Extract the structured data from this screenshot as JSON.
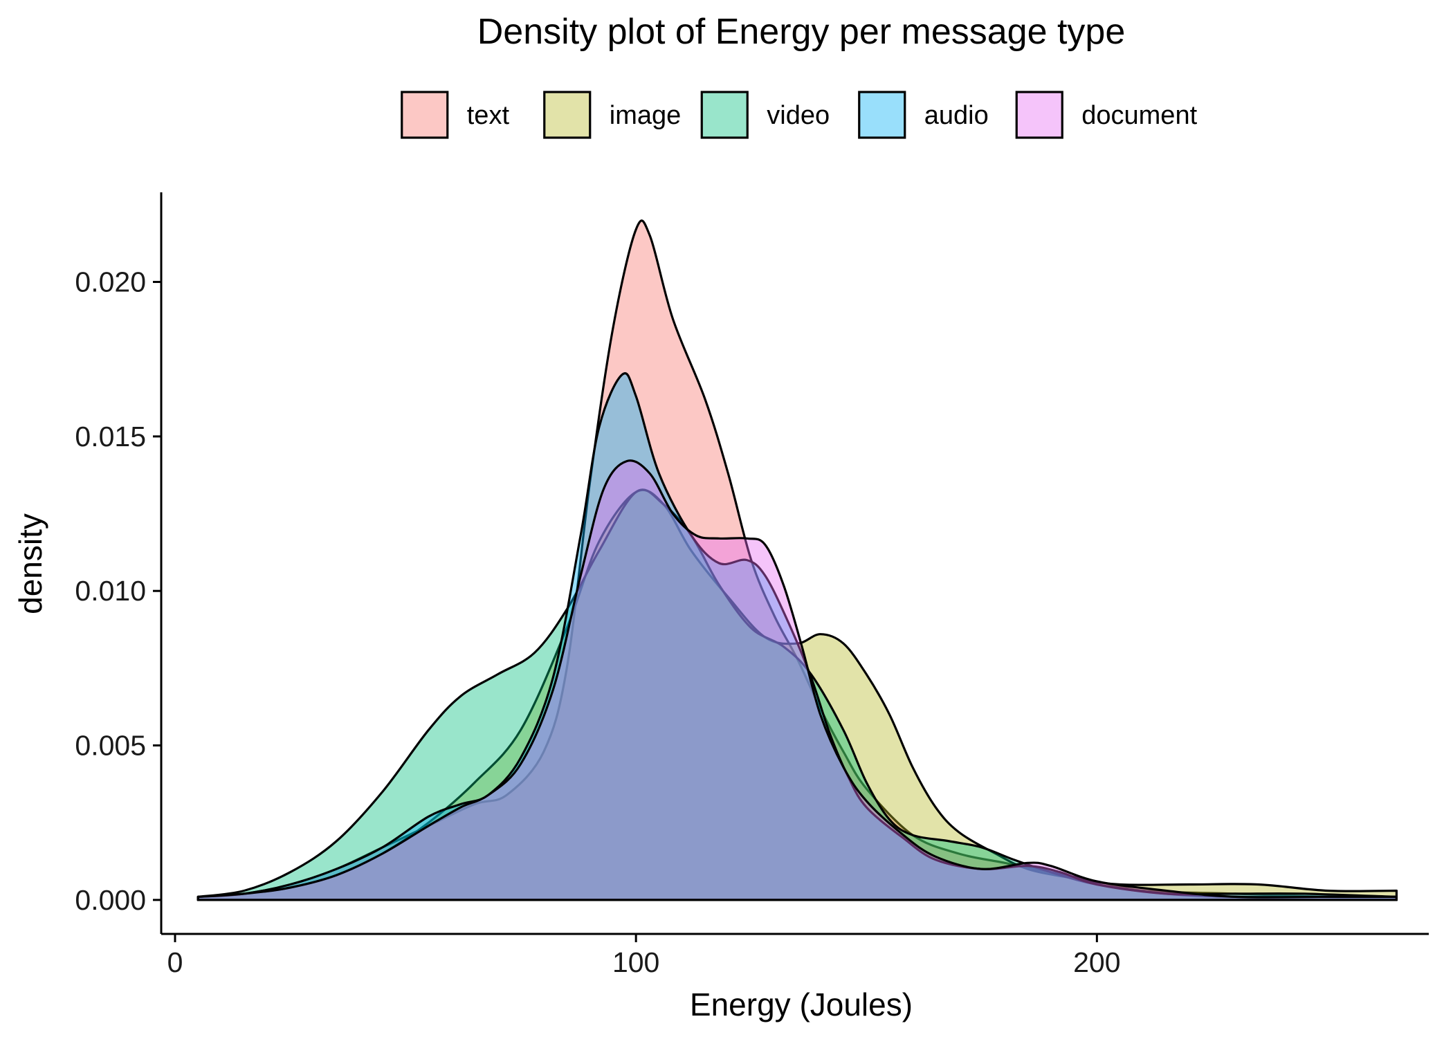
{
  "chart_data": {
    "type": "area",
    "title": "Density plot of Energy per message type",
    "xlabel": "Energy (Joules)",
    "ylabel": "density",
    "xlim": [
      -3,
      272
    ],
    "ylim": [
      -0.0011,
      0.0229
    ],
    "x_ticks": [
      0,
      100,
      200
    ],
    "x_tick_labels": [
      "0",
      "100",
      "200"
    ],
    "y_ticks": [
      0,
      0.005,
      0.01,
      0.015,
      0.02
    ],
    "y_tick_labels": [
      "0.000",
      "0.005",
      "0.010",
      "0.015",
      "0.020"
    ],
    "legend_position": "top",
    "grid": false,
    "fill_opacity": 0.4,
    "series": [
      {
        "name": "text",
        "color": "#F8766D",
        "points": [
          [
            5,
            0.0001
          ],
          [
            15,
            0.0002
          ],
          [
            25,
            0.0005
          ],
          [
            35,
            0.001
          ],
          [
            45,
            0.0017
          ],
          [
            55,
            0.0024
          ],
          [
            65,
            0.0031
          ],
          [
            72,
            0.0034
          ],
          [
            80,
            0.0048
          ],
          [
            85,
            0.0075
          ],
          [
            90,
            0.0135
          ],
          [
            95,
            0.0185
          ],
          [
            100,
            0.0217
          ],
          [
            103,
            0.0215
          ],
          [
            108,
            0.0188
          ],
          [
            115,
            0.0162
          ],
          [
            120,
            0.0138
          ],
          [
            125,
            0.011
          ],
          [
            130,
            0.0092
          ],
          [
            135,
            0.0078
          ],
          [
            140,
            0.0062
          ],
          [
            145,
            0.0048
          ],
          [
            150,
            0.0036
          ],
          [
            160,
            0.0021
          ],
          [
            170,
            0.0015
          ],
          [
            180,
            0.0012
          ],
          [
            190,
            0.0009
          ],
          [
            200,
            0.0006
          ],
          [
            210,
            0.0003
          ],
          [
            230,
            0.0002
          ],
          [
            250,
            0.0001
          ],
          [
            265,
            0.0001
          ]
        ]
      },
      {
        "name": "image",
        "color": "#B6B928",
        "points": [
          [
            5,
            0.0001
          ],
          [
            15,
            0.0002
          ],
          [
            25,
            0.0004
          ],
          [
            35,
            0.0008
          ],
          [
            45,
            0.0015
          ],
          [
            55,
            0.0025
          ],
          [
            65,
            0.0038
          ],
          [
            75,
            0.0055
          ],
          [
            85,
            0.0088
          ],
          [
            92,
            0.0116
          ],
          [
            100,
            0.0132
          ],
          [
            106,
            0.0128
          ],
          [
            112,
            0.0113
          ],
          [
            120,
            0.0098
          ],
          [
            128,
            0.0085
          ],
          [
            135,
            0.0083
          ],
          [
            140,
            0.0086
          ],
          [
            145,
            0.0083
          ],
          [
            150,
            0.0073
          ],
          [
            155,
            0.006
          ],
          [
            160,
            0.0043
          ],
          [
            165,
            0.003
          ],
          [
            170,
            0.0022
          ],
          [
            178,
            0.0015
          ],
          [
            185,
            0.001
          ],
          [
            195,
            0.0007
          ],
          [
            205,
            0.0005
          ],
          [
            220,
            0.0005
          ],
          [
            235,
            0.0005
          ],
          [
            250,
            0.0003
          ],
          [
            265,
            0.0003
          ]
        ]
      },
      {
        "name": "video",
        "color": "#00BF7D",
        "points": [
          [
            5,
            0.0001
          ],
          [
            15,
            0.0003
          ],
          [
            25,
            0.0009
          ],
          [
            35,
            0.0019
          ],
          [
            45,
            0.0035
          ],
          [
            55,
            0.0055
          ],
          [
            62,
            0.0066
          ],
          [
            70,
            0.0073
          ],
          [
            78,
            0.008
          ],
          [
            85,
            0.0094
          ],
          [
            92,
            0.0113
          ],
          [
            100,
            0.0132
          ],
          [
            106,
            0.0128
          ],
          [
            112,
            0.0118
          ],
          [
            118,
            0.0102
          ],
          [
            125,
            0.0088
          ],
          [
            132,
            0.0082
          ],
          [
            138,
            0.0073
          ],
          [
            145,
            0.0055
          ],
          [
            150,
            0.0038
          ],
          [
            155,
            0.0026
          ],
          [
            160,
            0.0021
          ],
          [
            168,
            0.0019
          ],
          [
            175,
            0.0017
          ],
          [
            182,
            0.0013
          ],
          [
            190,
            0.0009
          ],
          [
            200,
            0.0005
          ],
          [
            215,
            0.0002
          ],
          [
            230,
            0.0001
          ],
          [
            250,
            0.0001
          ],
          [
            265,
            0.0001
          ]
        ]
      },
      {
        "name": "audio",
        "color": "#00B0F6",
        "points": [
          [
            5,
            0.0001
          ],
          [
            15,
            0.0002
          ],
          [
            25,
            0.0005
          ],
          [
            35,
            0.001
          ],
          [
            45,
            0.0017
          ],
          [
            55,
            0.0027
          ],
          [
            62,
            0.0031
          ],
          [
            68,
            0.0034
          ],
          [
            75,
            0.0046
          ],
          [
            82,
            0.0072
          ],
          [
            88,
            0.0118
          ],
          [
            92,
            0.0153
          ],
          [
            97,
            0.017
          ],
          [
            100,
            0.0163
          ],
          [
            105,
            0.0138
          ],
          [
            112,
            0.0118
          ],
          [
            118,
            0.0109
          ],
          [
            124,
            0.011
          ],
          [
            128,
            0.0105
          ],
          [
            133,
            0.009
          ],
          [
            138,
            0.0072
          ],
          [
            142,
            0.0054
          ],
          [
            146,
            0.004
          ],
          [
            150,
            0.003
          ],
          [
            158,
            0.002
          ],
          [
            165,
            0.0013
          ],
          [
            175,
            0.001
          ],
          [
            185,
            0.0011
          ],
          [
            192,
            0.0009
          ],
          [
            200,
            0.0005
          ],
          [
            215,
            0.0002
          ],
          [
            230,
            0.0002
          ],
          [
            245,
            0.0002
          ],
          [
            265,
            0.0001
          ]
        ]
      },
      {
        "name": "document",
        "color": "#E76BF3",
        "points": [
          [
            5,
            0.0001
          ],
          [
            15,
            0.0002
          ],
          [
            25,
            0.0004
          ],
          [
            35,
            0.0008
          ],
          [
            45,
            0.0015
          ],
          [
            55,
            0.0024
          ],
          [
            62,
            0.003
          ],
          [
            68,
            0.0034
          ],
          [
            75,
            0.0044
          ],
          [
            82,
            0.0068
          ],
          [
            88,
            0.0105
          ],
          [
            93,
            0.0133
          ],
          [
            98,
            0.0142
          ],
          [
            103,
            0.0138
          ],
          [
            108,
            0.0125
          ],
          [
            113,
            0.0118
          ],
          [
            118,
            0.0117
          ],
          [
            124,
            0.0117
          ],
          [
            128,
            0.0115
          ],
          [
            132,
            0.0102
          ],
          [
            136,
            0.0082
          ],
          [
            140,
            0.006
          ],
          [
            145,
            0.0043
          ],
          [
            150,
            0.0032
          ],
          [
            158,
            0.0021
          ],
          [
            165,
            0.0014
          ],
          [
            175,
            0.001
          ],
          [
            185,
            0.0012
          ],
          [
            190,
            0.0011
          ],
          [
            200,
            0.0006
          ],
          [
            215,
            0.0003
          ],
          [
            230,
            0.0001
          ],
          [
            250,
            0.0001
          ],
          [
            265,
            0.0001
          ]
        ]
      }
    ]
  }
}
